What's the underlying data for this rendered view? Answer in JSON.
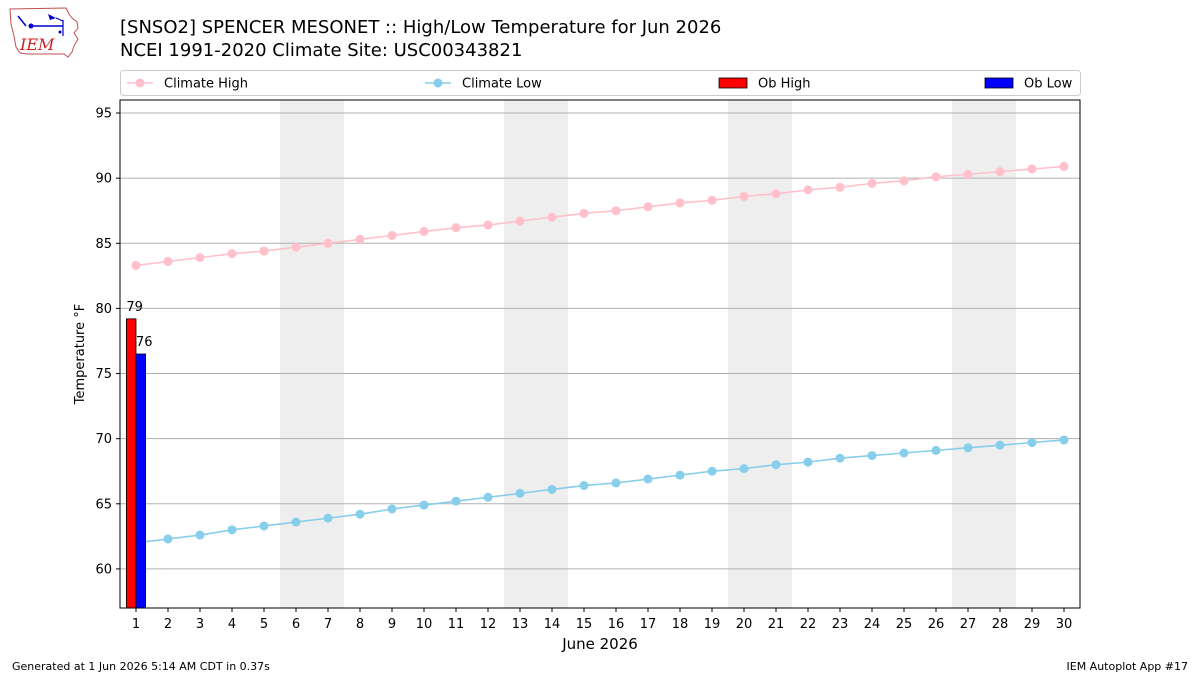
{
  "header": {
    "title_line1": "[SNSO2] SPENCER MESONET :: High/Low Temperature for Jun 2026",
    "title_line2": "NCEI 1991-2020 Climate Site: USC00343821"
  },
  "logo": {
    "text": "IEM",
    "icon": "iowa-state-outline-icon"
  },
  "footer": {
    "left": "Generated at 1 Jun 2026 5:14 AM CDT in 0.37s",
    "right": "IEM Autoplot App #17"
  },
  "colors": {
    "climate_high": "#ffc0cb",
    "climate_low": "#87ceeb",
    "ob_high": "#ff0000",
    "ob_low": "#0000ff",
    "weekend_band": "#eeeeee",
    "grid": "#b0b0b0"
  },
  "chart_data": {
    "type": "line",
    "xlabel": "June 2026",
    "ylabel": "Temperature °F",
    "x": [
      1,
      2,
      3,
      4,
      5,
      6,
      7,
      8,
      9,
      10,
      11,
      12,
      13,
      14,
      15,
      16,
      17,
      18,
      19,
      20,
      21,
      22,
      23,
      24,
      25,
      26,
      27,
      28,
      29,
      30
    ],
    "xlim": [
      0.5,
      30.5
    ],
    "ylim": [
      57,
      96
    ],
    "yticks": [
      60,
      65,
      70,
      75,
      80,
      85,
      90,
      95
    ],
    "grid": "horizontal",
    "legend_position": "top",
    "weekend_bands": [
      [
        6,
        7
      ],
      [
        13,
        14
      ],
      [
        20,
        21
      ],
      [
        27,
        28
      ]
    ],
    "series": [
      {
        "name": "Climate High",
        "kind": "line",
        "values": [
          83.3,
          83.6,
          83.9,
          84.2,
          84.4,
          84.7,
          85.0,
          85.3,
          85.6,
          85.9,
          86.2,
          86.4,
          86.7,
          87.0,
          87.3,
          87.5,
          87.8,
          88.1,
          88.3,
          88.6,
          88.8,
          89.1,
          89.3,
          89.6,
          89.8,
          90.1,
          90.3,
          90.5,
          90.7,
          90.9
        ]
      },
      {
        "name": "Climate Low",
        "kind": "line",
        "values": [
          62.0,
          62.3,
          62.6,
          63.0,
          63.3,
          63.6,
          63.9,
          64.2,
          64.6,
          64.9,
          65.2,
          65.5,
          65.8,
          66.1,
          66.4,
          66.6,
          66.9,
          67.2,
          67.5,
          67.7,
          68.0,
          68.2,
          68.5,
          68.7,
          68.9,
          69.1,
          69.3,
          69.5,
          69.7,
          69.9
        ]
      },
      {
        "name": "Ob High",
        "kind": "bar",
        "x": [
          1
        ],
        "values": [
          79.2
        ],
        "labels": [
          "79"
        ]
      },
      {
        "name": "Ob Low",
        "kind": "bar",
        "x": [
          1
        ],
        "values": [
          76.5
        ],
        "labels": [
          "76"
        ]
      }
    ]
  }
}
